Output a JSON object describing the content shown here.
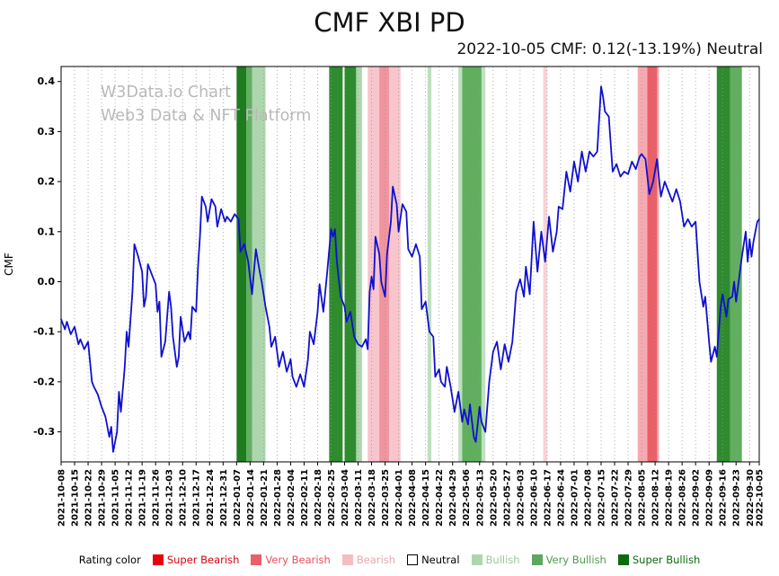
{
  "header": {
    "title": "CMF XBI PD",
    "subtitle": "2022-10-05 CMF: 0.12(-13.19%) Neutral"
  },
  "watermark": {
    "line1": "W3Data.io Chart",
    "line2": "Web3 Data & NFT Platform"
  },
  "legend": {
    "label": "Rating color",
    "items": [
      {
        "label": "Super Bearish",
        "color": "#e8000d",
        "text_color": "#d40410",
        "border": ""
      },
      {
        "label": "Very Bearish",
        "color": "#ea5f68",
        "text_color": "#e4525c",
        "border": ""
      },
      {
        "label": "Bearish",
        "color": "#f6bcc2",
        "text_color": "#eda6ae",
        "border": ""
      },
      {
        "label": "Neutral",
        "color": "#ffffff",
        "text_color": "#000000",
        "border": "#000000"
      },
      {
        "label": "Bullish",
        "color": "#aed6ae",
        "text_color": "#9cc89c",
        "border": ""
      },
      {
        "label": "Very Bullish",
        "color": "#5fa75f",
        "text_color": "#4f9b4f",
        "border": ""
      },
      {
        "label": "Super Bullish",
        "color": "#0b6b0b",
        "text_color": "#0b6b0b",
        "border": ""
      }
    ]
  },
  "chart_data": {
    "type": "line",
    "title": "CMF XBI PD",
    "xlabel": "",
    "ylabel": "CMF",
    "xlim": [
      0,
      362
    ],
    "ylim": [
      -0.36,
      0.43
    ],
    "grid": "vertical-dotted",
    "line_color": "#1010d0",
    "legend_position": "bottom",
    "y_ticks": [
      {
        "v": 0.4,
        "label": "0.4"
      },
      {
        "v": 0.3,
        "label": "0.3"
      },
      {
        "v": 0.2,
        "label": "0.2"
      },
      {
        "v": 0.1,
        "label": "0.1"
      },
      {
        "v": 0.0,
        "label": "0.0"
      },
      {
        "v": -0.1,
        "label": "-0.1"
      },
      {
        "v": -0.2,
        "label": "-0.2"
      },
      {
        "v": -0.3,
        "label": "-0.3"
      }
    ],
    "x_ticks": [
      {
        "d": 0,
        "label": "2021-10-08"
      },
      {
        "d": 7,
        "label": "2021-10-15"
      },
      {
        "d": 14,
        "label": "2021-10-22"
      },
      {
        "d": 21,
        "label": "2021-10-29"
      },
      {
        "d": 28,
        "label": "2021-11-05"
      },
      {
        "d": 35,
        "label": "2021-11-12"
      },
      {
        "d": 42,
        "label": "2021-11-19"
      },
      {
        "d": 49,
        "label": "2021-11-26"
      },
      {
        "d": 56,
        "label": "2021-12-03"
      },
      {
        "d": 63,
        "label": "2021-12-10"
      },
      {
        "d": 70,
        "label": "2021-12-17"
      },
      {
        "d": 77,
        "label": "2021-12-24"
      },
      {
        "d": 84,
        "label": "2021-12-31"
      },
      {
        "d": 91,
        "label": "2022-01-07"
      },
      {
        "d": 98,
        "label": "2022-01-14"
      },
      {
        "d": 105,
        "label": "2022-01-21"
      },
      {
        "d": 112,
        "label": "2022-01-28"
      },
      {
        "d": 119,
        "label": "2022-02-04"
      },
      {
        "d": 126,
        "label": "2022-02-11"
      },
      {
        "d": 133,
        "label": "2022-02-18"
      },
      {
        "d": 140,
        "label": "2022-02-25"
      },
      {
        "d": 147,
        "label": "2022-03-04"
      },
      {
        "d": 154,
        "label": "2022-03-11"
      },
      {
        "d": 161,
        "label": "2022-03-18"
      },
      {
        "d": 168,
        "label": "2022-03-25"
      },
      {
        "d": 175,
        "label": "2022-04-01"
      },
      {
        "d": 182,
        "label": "2022-04-08"
      },
      {
        "d": 189,
        "label": "2022-04-15"
      },
      {
        "d": 196,
        "label": "2022-04-22"
      },
      {
        "d": 203,
        "label": "2022-04-29"
      },
      {
        "d": 210,
        "label": "2022-05-06"
      },
      {
        "d": 217,
        "label": "2022-05-13"
      },
      {
        "d": 224,
        "label": "2022-05-20"
      },
      {
        "d": 231,
        "label": "2022-05-27"
      },
      {
        "d": 238,
        "label": "2022-06-03"
      },
      {
        "d": 245,
        "label": "2022-06-10"
      },
      {
        "d": 252,
        "label": "2022-06-17"
      },
      {
        "d": 259,
        "label": "2022-06-24"
      },
      {
        "d": 266,
        "label": "2022-07-01"
      },
      {
        "d": 273,
        "label": "2022-07-08"
      },
      {
        "d": 280,
        "label": "2022-07-15"
      },
      {
        "d": 287,
        "label": "2022-07-22"
      },
      {
        "d": 294,
        "label": "2022-07-29"
      },
      {
        "d": 301,
        "label": "2022-08-05"
      },
      {
        "d": 308,
        "label": "2022-08-12"
      },
      {
        "d": 315,
        "label": "2022-08-19"
      },
      {
        "d": 322,
        "label": "2022-08-26"
      },
      {
        "d": 329,
        "label": "2022-09-02"
      },
      {
        "d": 336,
        "label": "2022-09-09"
      },
      {
        "d": 343,
        "label": "2022-09-16"
      },
      {
        "d": 350,
        "label": "2022-09-23"
      },
      {
        "d": 357,
        "label": "2022-09-30"
      },
      {
        "d": 362,
        "label": "2022-10-05"
      }
    ],
    "bands": [
      {
        "start": 91,
        "end": 96,
        "color": "#1e7b1e"
      },
      {
        "start": 96,
        "end": 99,
        "color": "#5faf5f"
      },
      {
        "start": 99,
        "end": 106,
        "color": "#aed6ae"
      },
      {
        "start": 139,
        "end": 146,
        "color": "#2e8b2e"
      },
      {
        "start": 147,
        "end": 153,
        "color": "#2e8b2e"
      },
      {
        "start": 153,
        "end": 156,
        "color": "#aed6ae"
      },
      {
        "start": 159,
        "end": 176,
        "color": "#f7c5cb"
      },
      {
        "start": 165,
        "end": 170,
        "color": "#f0949e"
      },
      {
        "start": 190,
        "end": 192,
        "color": "#bfe0bf"
      },
      {
        "start": 206,
        "end": 208,
        "color": "#bfe0bf"
      },
      {
        "start": 208,
        "end": 218,
        "color": "#5faf5f"
      },
      {
        "start": 218,
        "end": 220,
        "color": "#bfe0bf"
      },
      {
        "start": 250,
        "end": 252,
        "color": "#f9d2d7"
      },
      {
        "start": 299,
        "end": 310,
        "color": "#f5aab2"
      },
      {
        "start": 304,
        "end": 309,
        "color": "#ea5f68"
      },
      {
        "start": 340,
        "end": 347,
        "color": "#2e8b2e"
      },
      {
        "start": 347,
        "end": 353,
        "color": "#5faf5f"
      }
    ],
    "series": [
      {
        "name": "CMF",
        "points": [
          [
            0,
            -0.075
          ],
          [
            2,
            -0.095
          ],
          [
            3,
            -0.08
          ],
          [
            5,
            -0.105
          ],
          [
            7,
            -0.09
          ],
          [
            9,
            -0.125
          ],
          [
            10,
            -0.115
          ],
          [
            12,
            -0.135
          ],
          [
            14,
            -0.12
          ],
          [
            16,
            -0.2
          ],
          [
            17,
            -0.21
          ],
          [
            19,
            -0.225
          ],
          [
            21,
            -0.25
          ],
          [
            23,
            -0.27
          ],
          [
            25,
            -0.31
          ],
          [
            26,
            -0.29
          ],
          [
            27,
            -0.34
          ],
          [
            29,
            -0.3
          ],
          [
            30,
            -0.22
          ],
          [
            31,
            -0.26
          ],
          [
            33,
            -0.17
          ],
          [
            34,
            -0.1
          ],
          [
            35,
            -0.13
          ],
          [
            37,
            -0.02
          ],
          [
            38,
            0.075
          ],
          [
            40,
            0.05
          ],
          [
            42,
            0.02
          ],
          [
            43,
            -0.05
          ],
          [
            44,
            -0.03
          ],
          [
            45,
            0.035
          ],
          [
            47,
            0.015
          ],
          [
            49,
            -0.005
          ],
          [
            50,
            -0.06
          ],
          [
            51,
            -0.04
          ],
          [
            52,
            -0.15
          ],
          [
            54,
            -0.12
          ],
          [
            56,
            -0.02
          ],
          [
            57,
            -0.05
          ],
          [
            58,
            -0.11
          ],
          [
            60,
            -0.17
          ],
          [
            61,
            -0.15
          ],
          [
            62,
            -0.07
          ],
          [
            64,
            -0.12
          ],
          [
            66,
            -0.1
          ],
          [
            67,
            -0.115
          ],
          [
            68,
            -0.05
          ],
          [
            70,
            -0.06
          ],
          [
            71,
            0.03
          ],
          [
            72,
            0.09
          ],
          [
            73,
            0.17
          ],
          [
            75,
            0.15
          ],
          [
            76,
            0.12
          ],
          [
            78,
            0.165
          ],
          [
            80,
            0.15
          ],
          [
            81,
            0.11
          ],
          [
            83,
            0.145
          ],
          [
            85,
            0.12
          ],
          [
            86,
            0.13
          ],
          [
            88,
            0.12
          ],
          [
            90,
            0.135
          ],
          [
            92,
            0.125
          ],
          [
            93,
            0.06
          ],
          [
            95,
            0.075
          ],
          [
            97,
            0.04
          ],
          [
            99,
            -0.025
          ],
          [
            101,
            0.065
          ],
          [
            103,
            0.02
          ],
          [
            104,
            0.0
          ],
          [
            106,
            -0.05
          ],
          [
            108,
            -0.09
          ],
          [
            109,
            -0.13
          ],
          [
            111,
            -0.11
          ],
          [
            113,
            -0.17
          ],
          [
            115,
            -0.14
          ],
          [
            117,
            -0.18
          ],
          [
            119,
            -0.155
          ],
          [
            120,
            -0.19
          ],
          [
            122,
            -0.21
          ],
          [
            124,
            -0.185
          ],
          [
            126,
            -0.21
          ],
          [
            128,
            -0.155
          ],
          [
            129,
            -0.1
          ],
          [
            131,
            -0.125
          ],
          [
            133,
            -0.06
          ],
          [
            134,
            -0.005
          ],
          [
            136,
            -0.06
          ],
          [
            138,
            0.02
          ],
          [
            140,
            0.105
          ],
          [
            141,
            0.09
          ],
          [
            142,
            0.105
          ],
          [
            143,
            0.04
          ],
          [
            145,
            -0.03
          ],
          [
            147,
            -0.05
          ],
          [
            148,
            -0.08
          ],
          [
            150,
            -0.06
          ],
          [
            152,
            -0.11
          ],
          [
            154,
            -0.125
          ],
          [
            156,
            -0.13
          ],
          [
            158,
            -0.115
          ],
          [
            159,
            -0.135
          ],
          [
            160,
            -0.02
          ],
          [
            161,
            0.01
          ],
          [
            162,
            -0.015
          ],
          [
            163,
            0.09
          ],
          [
            165,
            0.055
          ],
          [
            166,
            0.0
          ],
          [
            168,
            -0.03
          ],
          [
            169,
            0.055
          ],
          [
            171,
            0.12
          ],
          [
            172,
            0.19
          ],
          [
            174,
            0.155
          ],
          [
            175,
            0.1
          ],
          [
            177,
            0.155
          ],
          [
            179,
            0.14
          ],
          [
            180,
            0.065
          ],
          [
            182,
            0.05
          ],
          [
            184,
            0.075
          ],
          [
            186,
            0.05
          ],
          [
            187,
            -0.055
          ],
          [
            189,
            -0.04
          ],
          [
            191,
            -0.1
          ],
          [
            193,
            -0.11
          ],
          [
            194,
            -0.19
          ],
          [
            196,
            -0.175
          ],
          [
            197,
            -0.2
          ],
          [
            199,
            -0.21
          ],
          [
            200,
            -0.17
          ],
          [
            202,
            -0.21
          ],
          [
            204,
            -0.26
          ],
          [
            206,
            -0.22
          ],
          [
            208,
            -0.28
          ],
          [
            209,
            -0.255
          ],
          [
            211,
            -0.285
          ],
          [
            212,
            -0.245
          ],
          [
            214,
            -0.31
          ],
          [
            215,
            -0.32
          ],
          [
            217,
            -0.25
          ],
          [
            218,
            -0.28
          ],
          [
            220,
            -0.3
          ],
          [
            222,
            -0.2
          ],
          [
            224,
            -0.14
          ],
          [
            226,
            -0.12
          ],
          [
            228,
            -0.175
          ],
          [
            230,
            -0.125
          ],
          [
            232,
            -0.16
          ],
          [
            234,
            -0.12
          ],
          [
            236,
            -0.02
          ],
          [
            238,
            0.005
          ],
          [
            240,
            -0.03
          ],
          [
            241,
            0.03
          ],
          [
            243,
            -0.025
          ],
          [
            245,
            0.12
          ],
          [
            247,
            0.02
          ],
          [
            249,
            0.1
          ],
          [
            251,
            0.04
          ],
          [
            253,
            0.13
          ],
          [
            255,
            0.06
          ],
          [
            257,
            0.1
          ],
          [
            258,
            0.15
          ],
          [
            260,
            0.145
          ],
          [
            262,
            0.22
          ],
          [
            264,
            0.18
          ],
          [
            266,
            0.24
          ],
          [
            268,
            0.2
          ],
          [
            270,
            0.26
          ],
          [
            272,
            0.22
          ],
          [
            274,
            0.26
          ],
          [
            276,
            0.25
          ],
          [
            278,
            0.26
          ],
          [
            280,
            0.39
          ],
          [
            281,
            0.37
          ],
          [
            282,
            0.34
          ],
          [
            284,
            0.33
          ],
          [
            286,
            0.22
          ],
          [
            288,
            0.235
          ],
          [
            290,
            0.21
          ],
          [
            292,
            0.22
          ],
          [
            294,
            0.215
          ],
          [
            296,
            0.24
          ],
          [
            298,
            0.225
          ],
          [
            300,
            0.25
          ],
          [
            301,
            0.255
          ],
          [
            303,
            0.245
          ],
          [
            305,
            0.175
          ],
          [
            307,
            0.2
          ],
          [
            309,
            0.245
          ],
          [
            311,
            0.17
          ],
          [
            313,
            0.2
          ],
          [
            315,
            0.18
          ],
          [
            317,
            0.16
          ],
          [
            319,
            0.185
          ],
          [
            321,
            0.16
          ],
          [
            323,
            0.11
          ],
          [
            325,
            0.125
          ],
          [
            327,
            0.11
          ],
          [
            329,
            0.12
          ],
          [
            331,
            0.0
          ],
          [
            333,
            -0.05
          ],
          [
            334,
            -0.03
          ],
          [
            336,
            -0.12
          ],
          [
            337,
            -0.16
          ],
          [
            339,
            -0.13
          ],
          [
            340,
            -0.15
          ],
          [
            342,
            -0.05
          ],
          [
            343,
            -0.025
          ],
          [
            345,
            -0.07
          ],
          [
            346,
            -0.035
          ],
          [
            348,
            -0.03
          ],
          [
            349,
            0.0
          ],
          [
            350,
            -0.04
          ],
          [
            352,
            0.02
          ],
          [
            353,
            0.05
          ],
          [
            355,
            0.1
          ],
          [
            356,
            0.04
          ],
          [
            357,
            0.085
          ],
          [
            358,
            0.05
          ],
          [
            359,
            0.08
          ],
          [
            361,
            0.12
          ],
          [
            362,
            0.125
          ]
        ]
      }
    ]
  }
}
